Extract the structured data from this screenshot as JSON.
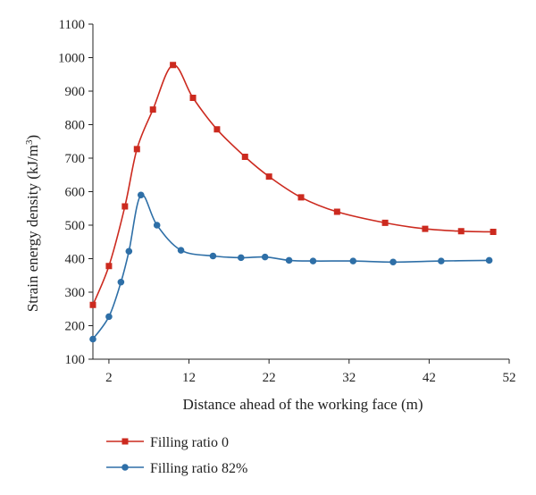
{
  "chart_data": {
    "type": "line",
    "xlabel": "Distance ahead of the working face (m)",
    "ylabel_main": "Strain energy density (kJ/m",
    "ylabel_sup": "3",
    "ylabel_close": ")",
    "xlim": [
      0,
      52
    ],
    "ylim": [
      100,
      1100
    ],
    "xticks": [
      2,
      12,
      22,
      32,
      42,
      52
    ],
    "yticks": [
      100,
      200,
      300,
      400,
      500,
      600,
      700,
      800,
      900,
      1000,
      1100
    ],
    "grid": false,
    "legend_position": "bottom-left, below plot",
    "series": [
      {
        "name": "Filling ratio 0",
        "color": "#cc2a1f",
        "marker": "square",
        "x": [
          0,
          2,
          4,
          5.5,
          7.5,
          10,
          12.5,
          15.5,
          19,
          22,
          26,
          30.5,
          36.5,
          41.5,
          46,
          50
        ],
        "y": [
          262,
          378,
          556,
          727,
          845,
          978,
          880,
          786,
          704,
          645,
          583,
          540,
          507,
          489,
          482,
          480
        ]
      },
      {
        "name": "Filling ratio 82%",
        "color": "#2e6fa7",
        "marker": "circle",
        "x": [
          0,
          2,
          3.5,
          4.5,
          6,
          8,
          11,
          15,
          18.5,
          21.5,
          24.5,
          27.5,
          32.5,
          37.5,
          43.5,
          49.5
        ],
        "y": [
          160,
          227,
          330,
          422,
          590,
          500,
          425,
          408,
          403,
          405,
          395,
          393,
          393,
          390,
          393,
          395
        ]
      }
    ]
  }
}
